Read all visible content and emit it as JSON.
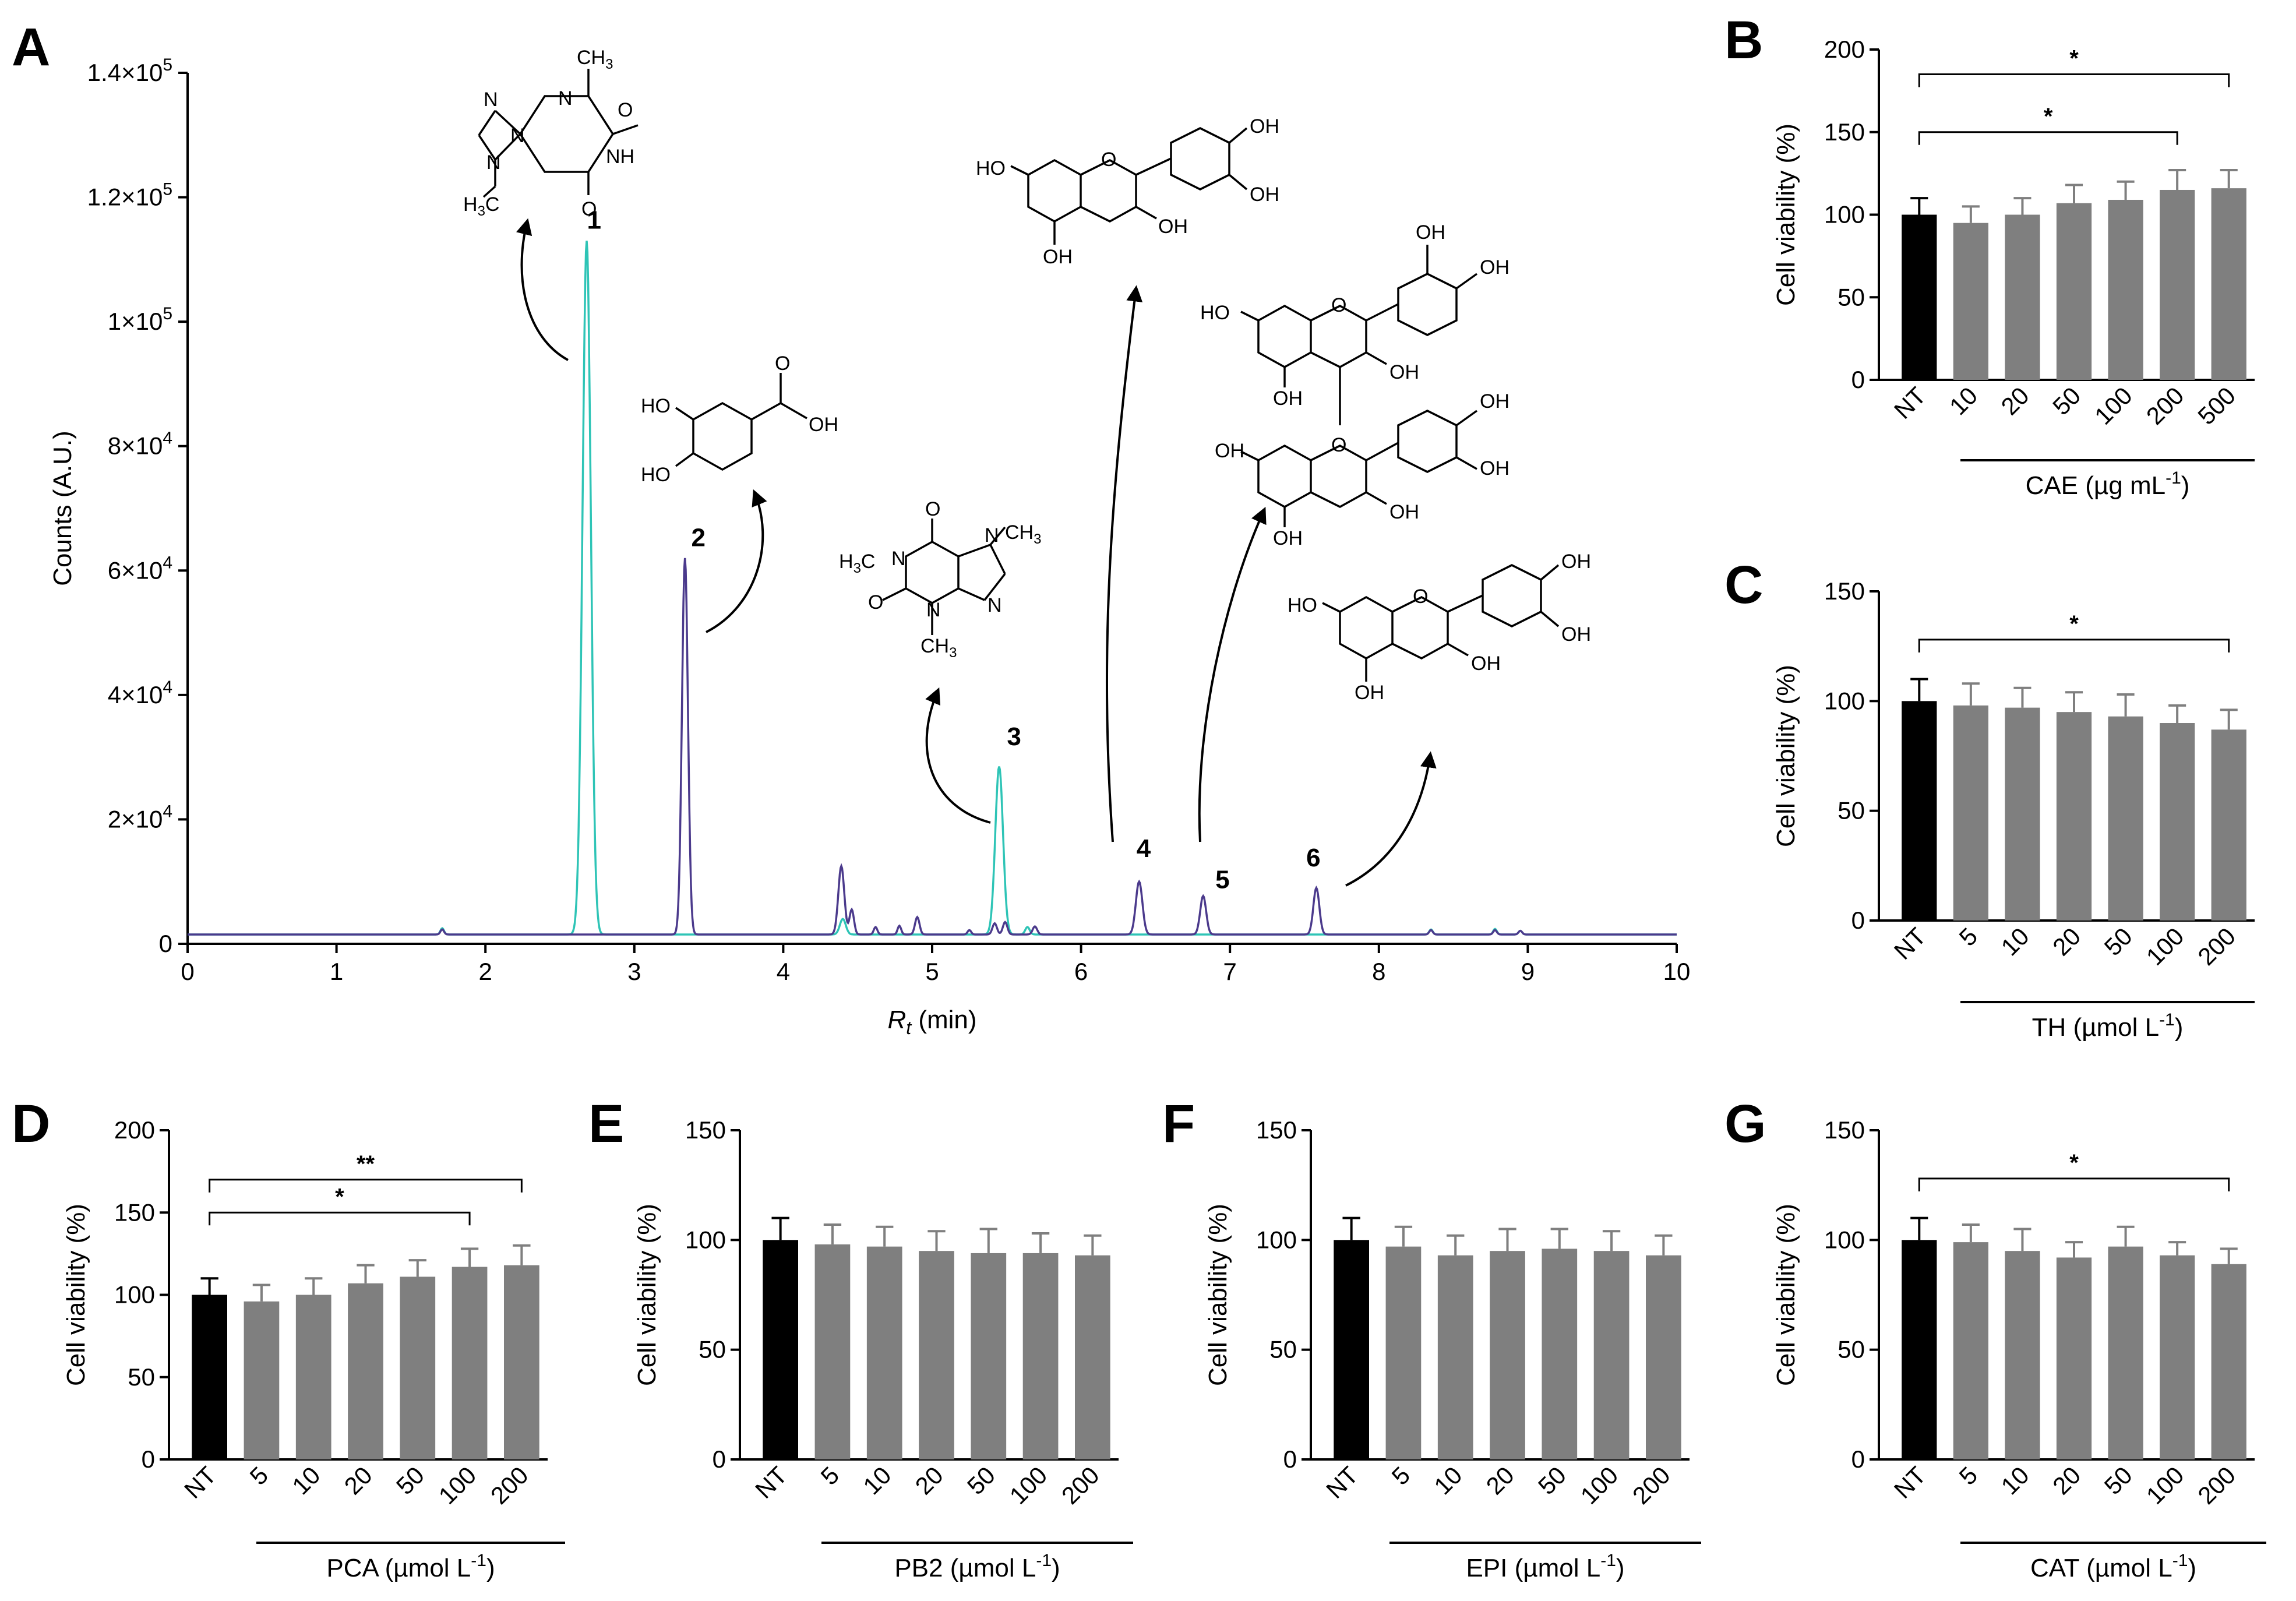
{
  "panels": [
    "A",
    "B",
    "C",
    "D",
    "E",
    "F",
    "G"
  ],
  "colors": {
    "teal": "#2ec4b6",
    "purple": "#4b3a8c",
    "black_bar": "#000000",
    "grey_bar": "#7f7f7f"
  },
  "chart_data": [
    {
      "panel": "A",
      "type": "line",
      "xlabel_main": "R",
      "xlabel_sub": "t",
      "xlabel_unit": " (min)",
      "ylabel": "Counts (A.U.)",
      "xlim": [
        0,
        10
      ],
      "ylim": [
        0,
        140000
      ],
      "x_ticks": [
        "0",
        "1",
        "2",
        "3",
        "4",
        "5",
        "6",
        "7",
        "8",
        "9",
        "10"
      ],
      "y_ticks": [
        {
          "v": 0,
          "base": "0",
          "exp": ""
        },
        {
          "v": 20000,
          "base": "2×10",
          "exp": "4"
        },
        {
          "v": 40000,
          "base": "4×10",
          "exp": "4"
        },
        {
          "v": 60000,
          "base": "6×10",
          "exp": "4"
        },
        {
          "v": 80000,
          "base": "8×10",
          "exp": "4"
        },
        {
          "v": 100000,
          "base": "1×10",
          "exp": "5"
        },
        {
          "v": 120000,
          "base": "1.2×10",
          "exp": "5"
        },
        {
          "v": 140000,
          "base": "1.4×10",
          "exp": "5"
        }
      ],
      "baseline": 1500,
      "series": [
        {
          "name": "teal trace",
          "color": "#2ec4b6",
          "peaks": [
            [
              1.71,
              1000,
              0.012
            ],
            [
              2.68,
              111500,
              0.028
            ],
            [
              4.4,
              2500,
              0.02
            ],
            [
              5.45,
              27000,
              0.026
            ],
            [
              5.64,
              1200,
              0.015
            ],
            [
              8.35,
              800,
              0.012
            ],
            [
              8.78,
              900,
              0.012
            ],
            [
              8.95,
              600,
              0.012
            ]
          ]
        },
        {
          "name": "purple trace",
          "color": "#4b3a8c",
          "peaks": [
            [
              1.71,
              800,
              0.012
            ],
            [
              3.34,
              60500,
              0.02
            ],
            [
              4.39,
              11000,
              0.02
            ],
            [
              4.46,
              4000,
              0.015
            ],
            [
              4.62,
              1200,
              0.012
            ],
            [
              4.78,
              1400,
              0.012
            ],
            [
              4.9,
              2800,
              0.015
            ],
            [
              5.25,
              700,
              0.012
            ],
            [
              5.42,
              1800,
              0.015
            ],
            [
              5.49,
              2000,
              0.015
            ],
            [
              5.69,
              1300,
              0.015
            ],
            [
              6.39,
              8500,
              0.022
            ],
            [
              6.82,
              6200,
              0.02
            ],
            [
              7.58,
              7500,
              0.02
            ],
            [
              8.35,
              700,
              0.012
            ],
            [
              8.78,
              700,
              0.012
            ],
            [
              8.95,
              600,
              0.012
            ]
          ]
        }
      ],
      "peak_labels": [
        {
          "label": "1",
          "x": 2.73,
          "y": 114000
        },
        {
          "label": "2",
          "x": 3.43,
          "y": 63000
        },
        {
          "label": "3",
          "x": 5.55,
          "y": 31000
        },
        {
          "label": "4",
          "x": 6.42,
          "y": 13000
        },
        {
          "label": "5",
          "x": 6.95,
          "y": 8000
        },
        {
          "label": "6",
          "x": 7.56,
          "y": 11500
        }
      ]
    },
    {
      "panel": "B",
      "type": "bar",
      "ylabel": "Cell viability (%)",
      "ylim": [
        0,
        200
      ],
      "y_ticks": [
        "0",
        "50",
        "100",
        "150",
        "200"
      ],
      "categories": [
        "NT",
        "10",
        "20",
        "50",
        "100",
        "200",
        "500"
      ],
      "values": [
        100,
        95,
        100,
        107,
        109,
        115,
        116
      ],
      "errors": [
        10,
        10,
        10,
        11,
        11,
        12,
        11
      ],
      "group_label": "CAE (µg mL",
      "group_sup": "-1",
      "group_close": ")",
      "brackets": [
        {
          "from": 0,
          "to": 5,
          "level": 150,
          "text": "*"
        },
        {
          "from": 0,
          "to": 6,
          "level": 185,
          "text": "*"
        }
      ]
    },
    {
      "panel": "C",
      "type": "bar",
      "ylabel": "Cell viability (%)",
      "ylim": [
        0,
        150
      ],
      "y_ticks": [
        "0",
        "50",
        "100",
        "150"
      ],
      "categories": [
        "NT",
        "5",
        "10",
        "20",
        "50",
        "100",
        "200"
      ],
      "values": [
        100,
        98,
        97,
        95,
        93,
        90,
        87
      ],
      "errors": [
        10,
        10,
        9,
        9,
        10,
        8,
        9
      ],
      "group_label": "TH (µmol L",
      "group_sup": "-1",
      "group_close": ")",
      "brackets": [
        {
          "from": 0,
          "to": 6,
          "level": 128,
          "text": "*"
        }
      ]
    },
    {
      "panel": "D",
      "type": "bar",
      "ylabel": "Cell viability (%)",
      "ylim": [
        0,
        200
      ],
      "y_ticks": [
        "0",
        "50",
        "100",
        "150",
        "200"
      ],
      "categories": [
        "NT",
        "5",
        "10",
        "20",
        "50",
        "100",
        "200"
      ],
      "values": [
        100,
        96,
        100,
        107,
        111,
        117,
        118
      ],
      "errors": [
        10,
        10,
        10,
        11,
        10,
        11,
        12
      ],
      "group_label": "PCA (µmol L",
      "group_sup": "-1",
      "group_close": ")",
      "brackets": [
        {
          "from": 0,
          "to": 5,
          "level": 150,
          "text": "*"
        },
        {
          "from": 0,
          "to": 6,
          "level": 170,
          "text": "**"
        }
      ]
    },
    {
      "panel": "E",
      "type": "bar",
      "ylabel": "Cell viability (%)",
      "ylim": [
        0,
        150
      ],
      "y_ticks": [
        "0",
        "50",
        "100",
        "150"
      ],
      "categories": [
        "NT",
        "5",
        "10",
        "20",
        "50",
        "100",
        "200"
      ],
      "values": [
        100,
        98,
        97,
        95,
        94,
        94,
        93
      ],
      "errors": [
        10,
        9,
        9,
        9,
        11,
        9,
        9
      ],
      "group_label": "PB2 (µmol L",
      "group_sup": "-1",
      "group_close": ")",
      "brackets": []
    },
    {
      "panel": "F",
      "type": "bar",
      "ylabel": "Cell viability (%)",
      "ylim": [
        0,
        150
      ],
      "y_ticks": [
        "0",
        "50",
        "100",
        "150"
      ],
      "categories": [
        "NT",
        "5",
        "10",
        "20",
        "50",
        "100",
        "200"
      ],
      "values": [
        100,
        97,
        93,
        95,
        96,
        95,
        93
      ],
      "errors": [
        10,
        9,
        9,
        10,
        9,
        9,
        9
      ],
      "group_label": "EPI (µmol L",
      "group_sup": "-1",
      "group_close": ")",
      "brackets": []
    },
    {
      "panel": "G",
      "type": "bar",
      "ylabel": "Cell viability (%)",
      "ylim": [
        0,
        150
      ],
      "y_ticks": [
        "0",
        "50",
        "100",
        "150"
      ],
      "categories": [
        "NT",
        "5",
        "10",
        "20",
        "50",
        "100",
        "200"
      ],
      "values": [
        100,
        99,
        95,
        92,
        97,
        93,
        89
      ],
      "errors": [
        10,
        8,
        10,
        7,
        9,
        6,
        7
      ],
      "group_label": "CAT (µmol L",
      "group_sup": "-1",
      "group_close": ")",
      "brackets": [
        {
          "from": 0,
          "to": 6,
          "level": 128,
          "text": "*"
        }
      ]
    }
  ],
  "structures": {
    "theobromine": {
      "labels": [
        "CH",
        "3",
        "N",
        "N",
        "O",
        "NH",
        "N",
        "N",
        "H",
        "3",
        "C",
        "O"
      ]
    },
    "protocatechuic": {
      "labels": [
        "HO",
        "HO",
        "O",
        "OH"
      ]
    },
    "caffeine": {
      "labels": [
        "H",
        "3",
        "C",
        "N",
        "O",
        "N",
        "N",
        "N",
        "O",
        "CH",
        "3",
        "CH",
        "3"
      ]
    },
    "epicatechin": {
      "labels": [
        "HO",
        "O",
        "OH",
        "OH",
        "OH",
        "OH"
      ]
    },
    "procyanidin": {
      "labels": [
        "HO",
        "O",
        "OH",
        "OH",
        "OH",
        "OH",
        "OH",
        "O",
        "OH",
        "OH",
        "OH",
        "OH"
      ]
    },
    "catechin": {
      "labels": [
        "HO",
        "O",
        "OH",
        "OH",
        "OH",
        "OH"
      ]
    }
  }
}
